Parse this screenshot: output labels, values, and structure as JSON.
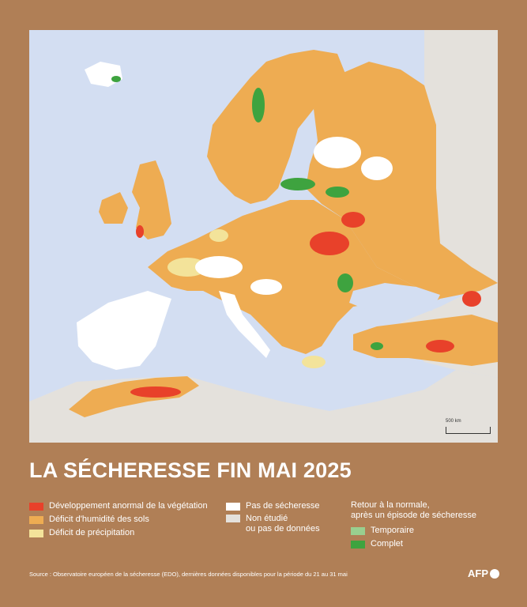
{
  "map": {
    "scale_label": "500 km"
  },
  "title": "LA SÉCHERESSE FIN MAI 2025",
  "legend": {
    "vegetation": {
      "label": "Développement anormal de la végétation",
      "color": "#e8412a"
    },
    "soil": {
      "label": "Déficit d'humidité des sols",
      "color": "#eeac52"
    },
    "precip": {
      "label": "Déficit de précipitation",
      "color": "#f3e39a"
    },
    "no_drought": {
      "label": "Pas de sécheresse",
      "color": "#ffffff"
    },
    "not_studied": {
      "label": "Non étudié\nou pas de données",
      "color": "#e4e1dc"
    },
    "return_title": "Retour à la normale,\naprès un épisode de sécheresse",
    "temporary": {
      "label": "Temporaire",
      "color": "#99cf8f"
    },
    "complete": {
      "label": "Complet",
      "color": "#3ea33f"
    }
  },
  "source": "Source : Observatoire européen de la sécheresse (EDO), dernières données disponibles pour la période du 21 au 31 mai",
  "brand": "AFP"
}
